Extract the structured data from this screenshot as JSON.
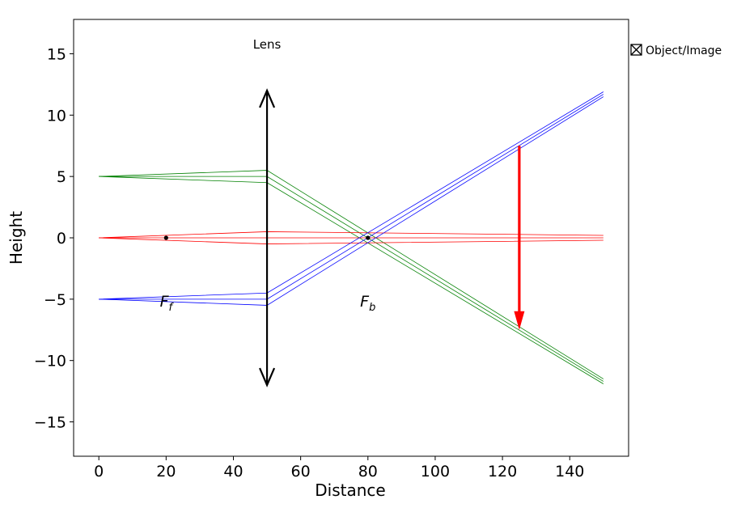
{
  "chart_data": {
    "type": "line",
    "title": "",
    "xlabel": "Distance",
    "ylabel": "Height",
    "xlim": [
      -7.5,
      157.5
    ],
    "ylim": [
      -17.8,
      17.8
    ],
    "xticks": [
      0,
      20,
      40,
      60,
      80,
      100,
      120,
      140
    ],
    "yticks": [
      -15,
      -10,
      -5,
      0,
      5,
      10,
      15
    ],
    "xtick_labels": [
      "0",
      "20",
      "40",
      "60",
      "80",
      "100",
      "120",
      "140"
    ],
    "ytick_labels": [
      "−15",
      "−10",
      "−5",
      "0",
      "5",
      "10",
      "15"
    ],
    "grid": false,
    "legend": {
      "entries": [
        "Object/Image"
      ],
      "location": "outside-right"
    },
    "lens": {
      "label": "Lens",
      "x": 50,
      "y_min": -12,
      "y_max": 12,
      "color": "#000000"
    },
    "focal_points": [
      {
        "label": "F",
        "subscript": "f",
        "x": 20,
        "y": 0,
        "label_y": -5.6
      },
      {
        "label": "F",
        "subscript": "b",
        "x": 80,
        "y": 0,
        "label_y": -5.6
      }
    ],
    "image_arrow": {
      "x": 125,
      "y_start": 7.5,
      "y_end": -7.5,
      "color": "#ff0000"
    },
    "series": [
      {
        "color": "#008000",
        "x": [
          0,
          50,
          150
        ],
        "y": [
          5,
          5.5,
          -11.5
        ]
      },
      {
        "color": "#008000",
        "x": [
          0,
          50,
          150
        ],
        "y": [
          5,
          5.0,
          -11.7
        ]
      },
      {
        "color": "#008000",
        "x": [
          0,
          50,
          150
        ],
        "y": [
          5,
          4.5,
          -11.9
        ]
      },
      {
        "color": "#ff0000",
        "x": [
          0,
          50,
          150
        ],
        "y": [
          0,
          0.5,
          0.2
        ]
      },
      {
        "color": "#ff0000",
        "x": [
          0,
          50,
          150
        ],
        "y": [
          0,
          0.0,
          0.0
        ]
      },
      {
        "color": "#ff0000",
        "x": [
          0,
          50,
          150
        ],
        "y": [
          0,
          -0.5,
          -0.2
        ]
      },
      {
        "color": "#0000ff",
        "x": [
          0,
          50,
          150
        ],
        "y": [
          -5,
          -4.5,
          11.9
        ]
      },
      {
        "color": "#0000ff",
        "x": [
          0,
          50,
          150
        ],
        "y": [
          -5,
          -5.0,
          11.7
        ]
      },
      {
        "color": "#0000ff",
        "x": [
          0,
          50,
          150
        ],
        "y": [
          -5,
          -5.5,
          11.5
        ]
      }
    ]
  }
}
